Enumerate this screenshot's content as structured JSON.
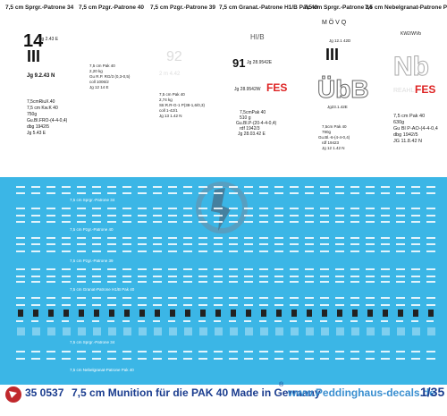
{
  "headers": [
    "7,5 cm Sprgr.-Patrone 34",
    "7,5 cm Pzgr.-Patrone 40",
    "7,5 cm Pzgr.-Patrone 39",
    "7,5 cm Granat.-Patrone H1/B Pak 40",
    "7,5 cm Sprgr.-Patrone 34",
    "7,5 cm Nebelgranat-Patrone Pak 40"
  ],
  "columns": [
    {
      "items": [
        "14",
        "Jg 2.43 E",
        "III",
        "Jg 9.2.43 N",
        "7,5cmRiuX.40",
        "7,5 cm Kw.K 40",
        "750g",
        "Gu.Bl.FRO-(4-4-0,4)",
        "dbg 1942/5",
        "Jg 5.43 E"
      ]
    },
    {
      "items": [
        "7,5 cm Pak 40",
        "2,20 kg",
        "Gu R.P. RG/3 (0,3-0,5)",
        "coll 1006/2",
        "Jg 12 14 E"
      ]
    },
    {
      "items": [
        "92",
        "2 m 4.42",
        "7,5 cm Pak 40",
        "2,74 kg",
        "Str.R.R-G-1 P(38-1,6/0,3)",
        "coll 1-42/1",
        "Jg 13 1.42 N"
      ]
    },
    {
      "items": [
        "HI/B",
        "91",
        "Jg 28.9542E",
        "Jg 28.9542W",
        "FES",
        "7,5cmPak 40",
        "510 g",
        "Gu.Bl.P-(20-4-4-0,4)",
        "rdf 1942/3",
        "Jg 28.03.42 E"
      ]
    },
    {
      "items": [
        "M Ö V Q",
        "Jg 12.1 42D",
        "III",
        "ÜbB",
        "Jg23.1.42E",
        "7,5cm Pak 40",
        "790g",
        "Gu.Bl.-6-(4-4-0,4)",
        "rdf 19423",
        "Jg 12 1.42 N"
      ]
    },
    {
      "items": [
        "KW2/WVb",
        "Nb",
        "REAHL",
        "FES",
        "7,5 cm Pak 40",
        "630g",
        "Gu Bl P-AO-(4-4-0,4",
        "dbg 1942/5",
        "JG 11.8.42 N"
      ]
    }
  ],
  "row_labels": [
    "7,5 cm Sprgr.-Patrone 34",
    "7,5 cm Pzgr.-Patrone 40",
    "7,5 cm Pzgr.-Patrone 39",
    "7,5 cm Granat-Patrone H1/B Pak 40",
    "7,5 cm Sprgr.-Patrone 34",
    "7,5 cm Nebelgranat-Patrone Pak 40"
  ],
  "footer": {
    "code": "35 0537",
    "title": "7,5 cm Munition für die PAK 40 Made in Germany",
    "reg": "®",
    "url": "www.Peddinghaus-decals.de",
    "scale": "1/35"
  }
}
